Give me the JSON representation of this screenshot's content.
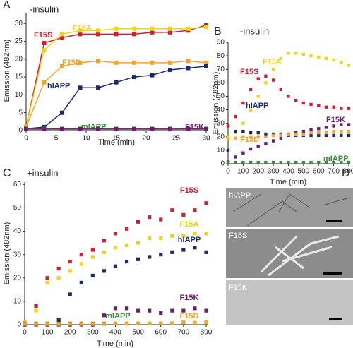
{
  "chart_data": [
    {
      "type": "line",
      "panel_label": "A",
      "title": "-insulin",
      "x_label": "Time (min)",
      "y_label": "Emission (482nm)",
      "lines": true,
      "x": [
        0,
        3,
        6,
        9,
        12,
        15,
        18,
        21,
        24,
        27,
        30
      ],
      "xlim": [
        0,
        30
      ],
      "xticks": [
        0,
        5,
        10,
        15,
        20,
        25,
        30
      ],
      "ylim": [
        0,
        33
      ],
      "yticks": [
        0,
        5,
        10,
        15,
        20,
        25,
        30
      ],
      "series": [
        {
          "name": "F15S",
          "color": "#d0202f",
          "values": [
            1,
            24.5,
            26,
            27,
            27,
            27,
            27,
            27.5,
            27.5,
            28,
            29.5
          ]
        },
        {
          "name": "F15A",
          "color": "#f2d21a",
          "values": [
            1,
            22.5,
            27,
            28,
            28,
            28.5,
            28.5,
            28.5,
            28.5,
            28.5,
            29
          ]
        },
        {
          "name": "F15D",
          "color": "#f4a42a",
          "values": [
            1,
            13.5,
            18,
            19,
            19.5,
            19,
            19,
            19,
            19,
            19.5,
            19
          ]
        },
        {
          "name": "hIAPP",
          "color": "#1c2a6e",
          "values": [
            0.5,
            1,
            5,
            12,
            12,
            13.5,
            15,
            15.5,
            17,
            17.5,
            18
          ]
        },
        {
          "name": "mIAPP",
          "color": "#3a8a3a",
          "values": [
            0.5,
            0.5,
            0.5,
            0.5,
            0.5,
            0.5,
            0.5,
            0.5,
            0.5,
            0.5,
            0.5
          ]
        },
        {
          "name": "F15K",
          "color": "#6e1d6e",
          "values": [
            0.4,
            0.4,
            0.4,
            0.4,
            0.4,
            0.4,
            0.4,
            0.4,
            0.4,
            0.4,
            0.4
          ]
        }
      ]
    },
    {
      "type": "scatter",
      "panel_label": "B",
      "title": "-insulin",
      "x_label": "Time (min)",
      "y_label": "Emission (482nm)",
      "lines": false,
      "x": [
        0,
        50,
        100,
        150,
        200,
        250,
        300,
        350,
        400,
        450,
        500,
        550,
        600,
        650,
        700,
        750,
        800
      ],
      "xlim": [
        0,
        800
      ],
      "xticks": [
        0,
        100,
        200,
        300,
        400,
        500,
        600,
        700,
        800
      ],
      "ylim": [
        0,
        90
      ],
      "yticks": [
        0,
        10,
        20,
        30,
        40,
        50,
        60,
        70,
        80,
        90
      ],
      "series": [
        {
          "name": "F15A",
          "color": "#f2d21a",
          "values": [
            20,
            23,
            30,
            40,
            50,
            60,
            70,
            78,
            82,
            82,
            81,
            80,
            79,
            78,
            77,
            75,
            73
          ]
        },
        {
          "name": "F15S",
          "color": "#d0202f",
          "values": [
            28,
            35,
            45,
            55,
            63,
            65,
            62,
            55,
            50,
            47,
            45,
            44,
            43,
            42,
            42,
            41,
            41
          ]
        },
        {
          "name": "hIAPP",
          "color": "#1c2a6e",
          "values": [
            10,
            24,
            24,
            23,
            23,
            22,
            22,
            22,
            22,
            21,
            21,
            21,
            21,
            21,
            21,
            21,
            21
          ]
        },
        {
          "name": "F15K",
          "color": "#6e1d6e",
          "values": [
            2,
            5,
            8,
            11,
            13,
            15,
            17,
            19,
            21,
            23,
            24,
            25,
            26,
            27,
            28,
            29,
            29
          ]
        },
        {
          "name": "F15D",
          "color": "#f4a42a",
          "values": [
            18,
            19,
            20,
            20,
            20,
            20,
            21,
            21,
            22,
            22,
            22,
            23,
            23,
            23,
            24,
            24,
            24
          ]
        },
        {
          "name": "mIAPP",
          "color": "#3a8a3a",
          "values": [
            1,
            1,
            1,
            1,
            1,
            1,
            1,
            1,
            1,
            1,
            1,
            1,
            1,
            1,
            1,
            1,
            1
          ]
        }
      ]
    },
    {
      "type": "scatter",
      "panel_label": "C",
      "title": "+insulin",
      "x_label": "Time (min)",
      "y_label": "Emission (482nm)",
      "lines": false,
      "x": [
        0,
        50,
        100,
        150,
        200,
        250,
        300,
        350,
        400,
        450,
        500,
        550,
        600,
        650,
        700,
        750,
        800
      ],
      "xlim": [
        0,
        800
      ],
      "xticks": [
        0,
        100,
        200,
        300,
        400,
        500,
        600,
        700,
        800
      ],
      "ylim": [
        0,
        61
      ],
      "yticks": [
        0,
        10,
        20,
        30,
        40,
        50,
        60
      ],
      "series": [
        {
          "name": "F15S",
          "color": "#d0202f",
          "values": [
            1,
            8,
            20,
            24,
            27,
            30,
            32,
            36,
            39,
            41,
            44,
            46,
            45,
            49,
            47,
            49,
            52
          ]
        },
        {
          "name": "F15A",
          "color": "#f2d21a",
          "values": [
            1,
            6,
            18,
            20,
            23,
            26,
            29,
            31,
            33,
            34,
            35,
            37,
            37,
            38,
            38,
            39,
            39
          ]
        },
        {
          "name": "hIAPP",
          "color": "#1c2a6e",
          "values": [
            0,
            0,
            0,
            2,
            13,
            18,
            21,
            23,
            25,
            27,
            28,
            29,
            30,
            31,
            32,
            33,
            31
          ]
        },
        {
          "name": "F15K",
          "color": "#6e1d6e",
          "values": [
            0,
            0,
            0,
            0,
            0,
            0,
            0,
            4,
            7,
            7,
            6,
            6,
            5,
            6,
            6,
            7,
            6
          ]
        },
        {
          "name": "mIAPP",
          "color": "#3a8a3a",
          "values": [
            0.5,
            0.5,
            0.5,
            0.5,
            0.5,
            0.5,
            0.5,
            0.5,
            0.5,
            0.5,
            0.5,
            0.5,
            0.5,
            0.5,
            0.5,
            0.5,
            0.5
          ]
        },
        {
          "name": "F15D",
          "color": "#f4a42a",
          "values": [
            0.3,
            0.3,
            0.3,
            0.3,
            0.3,
            0.3,
            0.3,
            0.3,
            0.4,
            0.4,
            0.5,
            0.5,
            0.5,
            0.6,
            1,
            0.8,
            1
          ]
        }
      ]
    }
  ],
  "micrographs": {
    "panel_label": "D",
    "images": [
      {
        "label": "hIAPP"
      },
      {
        "label": "F15S"
      },
      {
        "label": "F15K"
      }
    ]
  }
}
